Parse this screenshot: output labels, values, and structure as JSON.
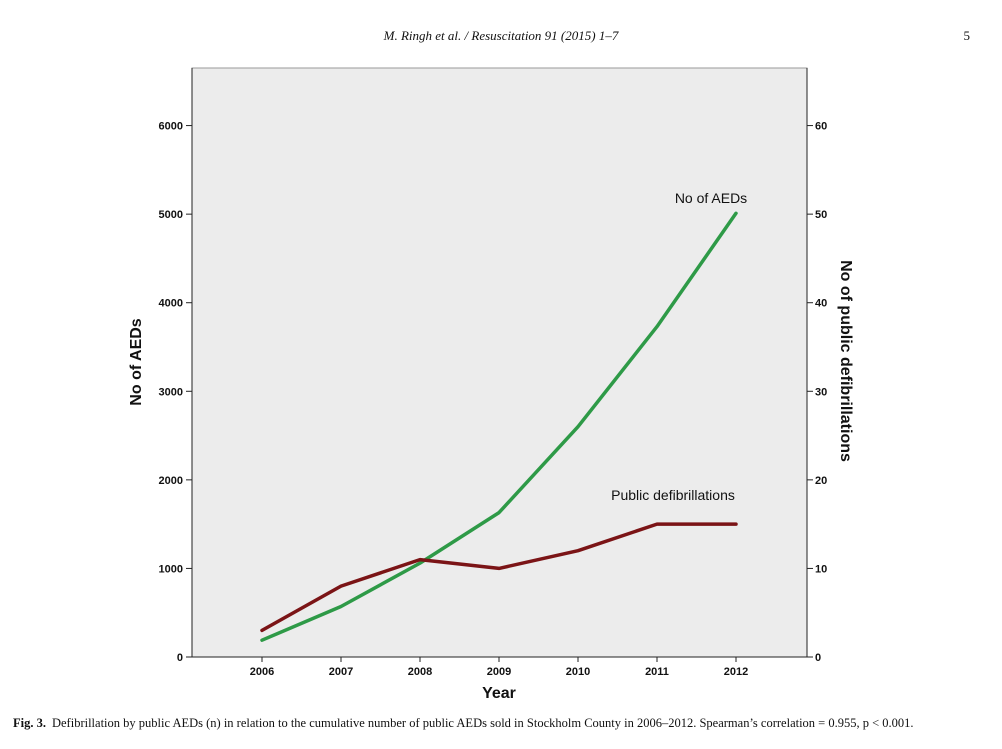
{
  "header": {
    "running_title": "M. Ringh et al. / Resuscitation 91 (2015) 1–7",
    "page_number": "5"
  },
  "caption": {
    "label": "Fig. 3.",
    "text": "Defibrillation by public AEDs (n) in relation to the cumulative number of public AEDs sold in Stockholm County in 2006–2012. Spearman’s correlation = 0.955, p < 0.001."
  },
  "chart_data": {
    "type": "line",
    "categories": [
      "2006",
      "2007",
      "2008",
      "2009",
      "2010",
      "2011",
      "2012"
    ],
    "xlabel": "Year",
    "ylabel_left": "No of AEDs",
    "ylabel_right": "No of public defibrillations",
    "ylim_left": [
      0,
      6650
    ],
    "ylim_right": [
      0,
      66.5
    ],
    "yticks_left": [
      0,
      1000,
      2000,
      3000,
      4000,
      5000,
      6000
    ],
    "yticks_right": [
      0,
      10,
      20,
      30,
      40,
      50,
      60
    ],
    "grid": false,
    "plot_background": "#ececec",
    "series": [
      {
        "name": "No of AEDs",
        "axis": "left",
        "color": "#2e9a47",
        "values": [
          190,
          570,
          1060,
          1630,
          2600,
          3730,
          5010
        ]
      },
      {
        "name": "Public defibrillations",
        "axis": "right",
        "color": "#7b1416",
        "values": [
          3,
          8,
          11,
          10,
          12,
          15,
          15
        ]
      }
    ]
  }
}
